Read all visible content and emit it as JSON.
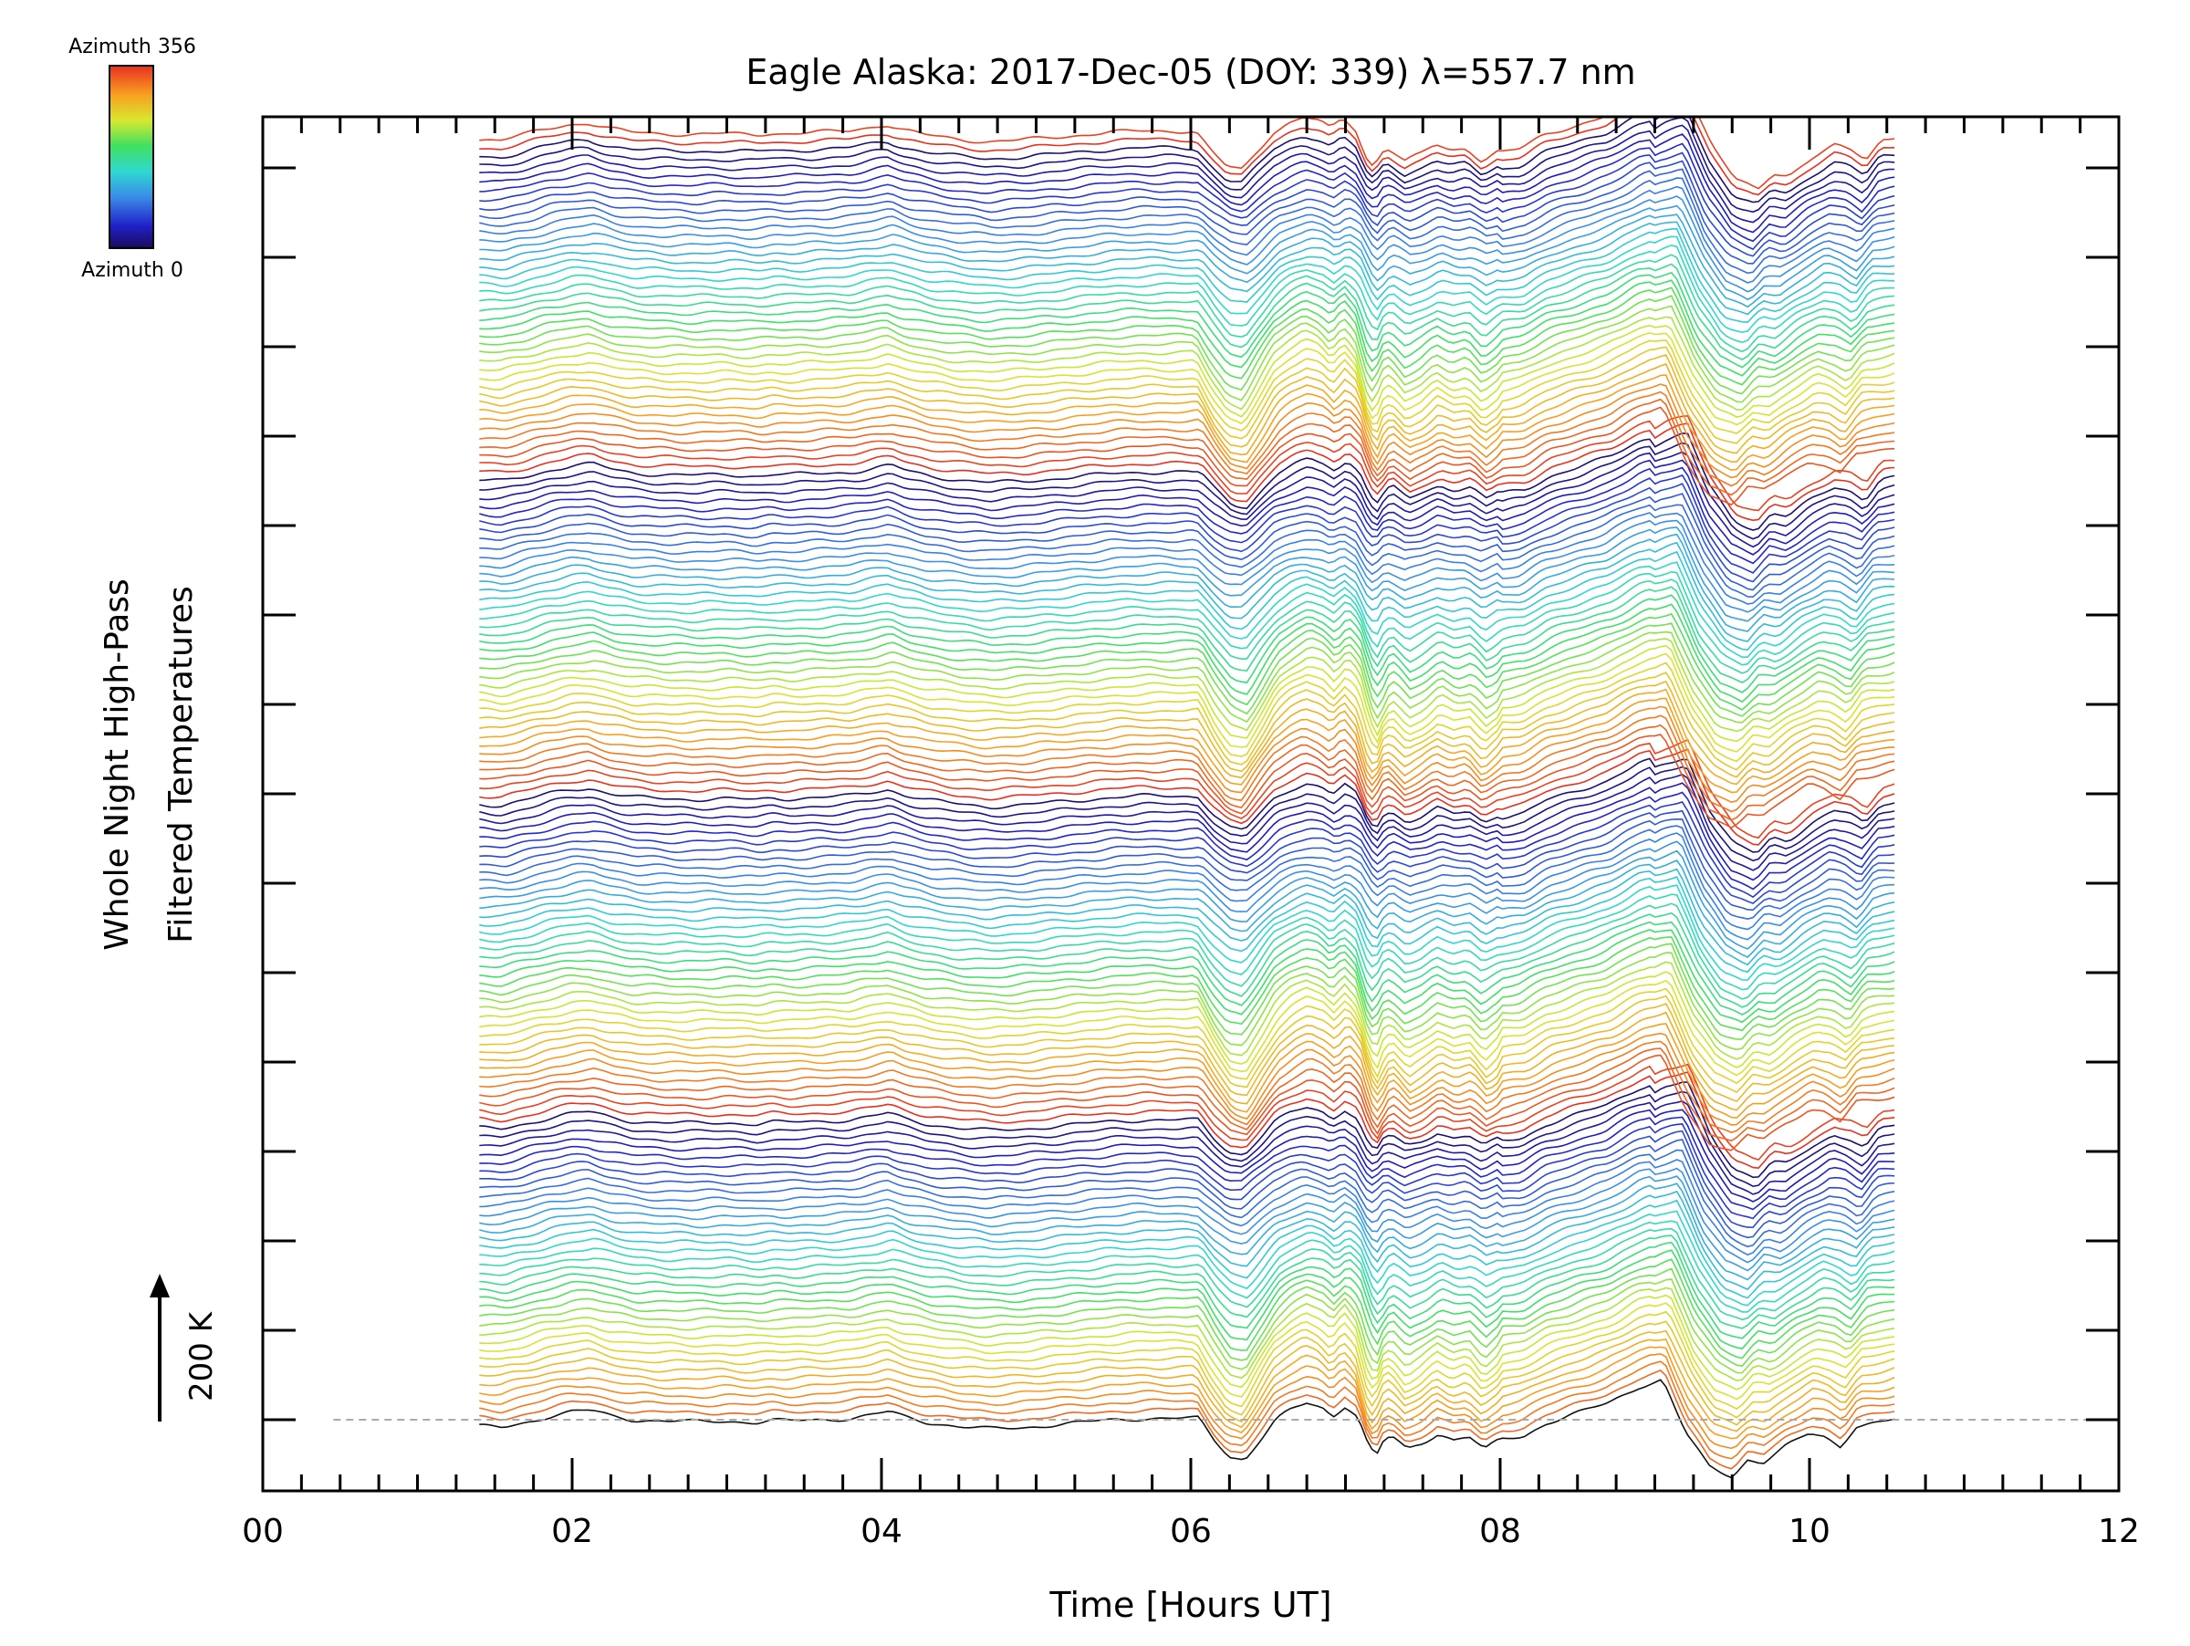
{
  "chart_data": {
    "type": "line",
    "title": "Eagle Alaska: 2017-Dec-05 (DOY: 339) λ=557.7 nm",
    "xlabel": "Time [Hours UT]",
    "ylabel_line1": "Whole Night High-Pass",
    "ylabel_line2": "Filtered Temperatures",
    "scale_bar_label": "200 K",
    "colorbar": {
      "top_label": "Azimuth 356",
      "bottom_label": "Azimuth 0",
      "colormap": "rainbow"
    },
    "xlim": [
      0,
      12
    ],
    "x_tick_labels": [
      "00",
      "02",
      "04",
      "06",
      "08",
      "10",
      "12"
    ],
    "x_tick_values": [
      0,
      2,
      4,
      6,
      8,
      10,
      12
    ],
    "x_minor_step": 0.25,
    "y_major_ticks": 15,
    "series_count": 152,
    "azimuth_range": [
      0,
      356
    ],
    "series_offset_K": 20,
    "baseline_dashed": true,
    "profile_time": [
      1.4,
      1.55,
      1.7,
      1.85,
      2.0,
      2.12,
      2.25,
      2.4,
      2.6,
      2.8,
      3.0,
      3.2,
      3.3,
      3.4,
      3.6,
      3.8,
      3.95,
      4.05,
      4.15,
      4.3,
      4.5,
      4.7,
      4.9,
      5.1,
      5.3,
      5.5,
      5.7,
      5.9,
      6.05,
      6.15,
      6.25,
      6.35,
      6.45,
      6.55,
      6.65,
      6.75,
      6.85,
      6.92,
      7.0,
      7.08,
      7.15,
      7.2,
      7.25,
      7.3,
      7.4,
      7.5,
      7.6,
      7.7,
      7.8,
      7.9,
      8.0,
      8.15,
      8.3,
      8.5,
      8.7,
      8.9,
      9.05,
      9.2,
      9.35,
      9.5,
      9.6,
      9.7,
      9.85,
      10.0,
      10.1,
      10.2,
      10.3,
      10.45,
      10.55
    ],
    "profile_K": [
      -10,
      -12,
      -4,
      5,
      12,
      14,
      6,
      0,
      -2,
      -3,
      -2,
      -4,
      -1,
      -2,
      0,
      2,
      8,
      12,
      4,
      -4,
      -10,
      -14,
      -12,
      -8,
      -4,
      0,
      2,
      2,
      2,
      -30,
      -55,
      -60,
      -30,
      0,
      15,
      25,
      18,
      5,
      22,
      5,
      -40,
      -55,
      -30,
      -25,
      -45,
      -35,
      -20,
      -30,
      -25,
      -45,
      -30,
      -25,
      -5,
      10,
      25,
      50,
      60,
      -20,
      -70,
      -85,
      -60,
      -65,
      -40,
      -20,
      -25,
      -40,
      -10,
      -5,
      0
    ],
    "colors": {
      "axis": "#000000",
      "baseline": "#aaaaaa"
    }
  }
}
